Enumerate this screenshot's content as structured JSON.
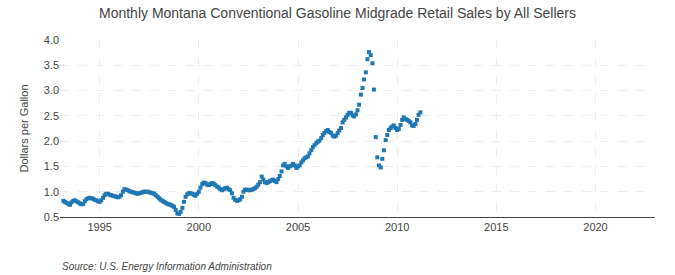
{
  "chart_data": {
    "type": "scatter",
    "title": "Monthly Montana Conventional Gasoline Midgrade Retail Sales by All Sellers",
    "ylabel": "Dollars per Gallon",
    "annotations": [
      "Source: U.S. Energy Information Administration"
    ],
    "marker": "square",
    "grid": true,
    "xlim": [
      1993.0,
      2023.0
    ],
    "ylim": [
      0.5,
      4.0
    ],
    "xticks": [
      1995,
      2000,
      2005,
      2010,
      2015,
      2020
    ],
    "yticks": [
      0.5,
      {
        "value": 1.0,
        "label": "1.0"
      },
      1.5,
      {
        "value": 2.0,
        "label": "2.0"
      },
      2.5,
      {
        "value": 3.0,
        "label": "3.0"
      },
      3.5,
      {
        "value": 4.0,
        "label": "4.0"
      }
    ],
    "x": [
      1993.17,
      1993.25,
      1993.33,
      1993.42,
      1993.5,
      1993.58,
      1993.67,
      1993.75,
      1993.83,
      1993.92,
      1994.0,
      1994.08,
      1994.17,
      1994.25,
      1994.33,
      1994.42,
      1994.5,
      1994.58,
      1994.67,
      1994.75,
      1994.83,
      1994.92,
      1995.0,
      1995.08,
      1995.17,
      1995.25,
      1995.33,
      1995.42,
      1995.5,
      1995.58,
      1995.67,
      1995.75,
      1995.83,
      1995.92,
      1996.0,
      1996.08,
      1996.17,
      1996.25,
      1996.33,
      1996.42,
      1996.5,
      1996.58,
      1996.67,
      1996.75,
      1996.83,
      1996.92,
      1997.0,
      1997.08,
      1997.17,
      1997.25,
      1997.33,
      1997.42,
      1997.5,
      1997.58,
      1997.67,
      1997.75,
      1997.83,
      1997.92,
      1998.0,
      1998.08,
      1998.17,
      1998.25,
      1998.33,
      1998.42,
      1998.5,
      1998.58,
      1998.67,
      1998.75,
      1998.83,
      1998.92,
      1999.0,
      1999.08,
      1999.17,
      1999.25,
      1999.33,
      1999.42,
      1999.5,
      1999.58,
      1999.67,
      1999.75,
      1999.83,
      1999.92,
      2000.0,
      2000.08,
      2000.17,
      2000.25,
      2000.33,
      2000.42,
      2000.5,
      2000.58,
      2000.67,
      2000.75,
      2000.83,
      2000.92,
      2001.0,
      2001.08,
      2001.17,
      2001.25,
      2001.33,
      2001.42,
      2001.5,
      2001.58,
      2001.67,
      2001.75,
      2001.83,
      2001.92,
      2002.0,
      2002.08,
      2002.17,
      2002.25,
      2002.33,
      2002.42,
      2002.5,
      2002.58,
      2002.67,
      2002.75,
      2002.83,
      2002.92,
      2003.0,
      2003.08,
      2003.17,
      2003.25,
      2003.33,
      2003.42,
      2003.5,
      2003.58,
      2003.67,
      2003.75,
      2003.83,
      2003.92,
      2004.0,
      2004.08,
      2004.17,
      2004.25,
      2004.33,
      2004.42,
      2004.5,
      2004.58,
      2004.67,
      2004.75,
      2004.83,
      2004.92,
      2005.0,
      2005.08,
      2005.17,
      2005.25,
      2005.33,
      2005.42,
      2005.5,
      2005.58,
      2005.67,
      2005.75,
      2005.83,
      2005.92,
      2006.0,
      2006.08,
      2006.17,
      2006.25,
      2006.33,
      2006.42,
      2006.5,
      2006.58,
      2006.67,
      2006.75,
      2006.83,
      2006.92,
      2007.0,
      2007.08,
      2007.17,
      2007.25,
      2007.33,
      2007.42,
      2007.5,
      2007.58,
      2007.67,
      2007.75,
      2007.83,
      2007.92,
      2008.0,
      2008.08,
      2008.17,
      2008.25,
      2008.33,
      2008.42,
      2008.5,
      2008.58,
      2008.67,
      2008.75,
      2008.83,
      2008.92,
      2009.0,
      2009.08,
      2009.17,
      2009.25,
      2009.33,
      2009.42,
      2009.5,
      2009.58,
      2009.67,
      2009.75,
      2009.83,
      2009.92,
      2010.0,
      2010.08,
      2010.17,
      2010.25,
      2010.33,
      2010.42,
      2010.5,
      2010.58,
      2010.67,
      2010.75,
      2010.83,
      2010.92,
      2011.0,
      2011.08,
      2011.17
    ],
    "values": [
      0.82,
      0.8,
      0.78,
      0.76,
      0.74,
      0.79,
      0.82,
      0.83,
      0.81,
      0.79,
      0.77,
      0.75,
      0.76,
      0.81,
      0.85,
      0.87,
      0.88,
      0.87,
      0.86,
      0.84,
      0.83,
      0.81,
      0.8,
      0.83,
      0.88,
      0.93,
      0.96,
      0.96,
      0.94,
      0.93,
      0.92,
      0.91,
      0.9,
      0.89,
      0.9,
      0.93,
      1.0,
      1.05,
      1.04,
      1.03,
      1.01,
      1.0,
      0.99,
      0.98,
      0.97,
      0.96,
      0.97,
      0.98,
      0.99,
      1.0,
      1.0,
      1.0,
      0.99,
      0.98,
      0.97,
      0.96,
      0.93,
      0.9,
      0.87,
      0.84,
      0.82,
      0.8,
      0.78,
      0.76,
      0.75,
      0.74,
      0.72,
      0.7,
      0.64,
      0.57,
      0.56,
      0.6,
      0.68,
      0.8,
      0.9,
      0.95,
      0.97,
      0.97,
      0.96,
      0.94,
      0.92,
      0.96,
      1.0,
      1.08,
      1.15,
      1.18,
      1.17,
      1.14,
      1.13,
      1.15,
      1.17,
      1.16,
      1.13,
      1.1,
      1.08,
      1.05,
      1.03,
      1.05,
      1.07,
      1.08,
      1.05,
      1.03,
      0.97,
      0.88,
      0.84,
      0.82,
      0.83,
      0.85,
      0.9,
      1.0,
      1.04,
      1.04,
      1.03,
      1.03,
      1.04,
      1.05,
      1.07,
      1.1,
      1.14,
      1.19,
      1.3,
      1.24,
      1.19,
      1.17,
      1.19,
      1.21,
      1.23,
      1.24,
      1.21,
      1.19,
      1.25,
      1.31,
      1.4,
      1.52,
      1.55,
      1.5,
      1.47,
      1.5,
      1.52,
      1.55,
      1.52,
      1.47,
      1.5,
      1.52,
      1.58,
      1.62,
      1.66,
      1.68,
      1.7,
      1.76,
      1.82,
      1.88,
      1.92,
      1.96,
      1.99,
      2.01,
      2.06,
      2.12,
      2.16,
      2.2,
      2.22,
      2.18,
      2.16,
      2.11,
      2.09,
      2.11,
      2.16,
      2.21,
      2.26,
      2.37,
      2.42,
      2.47,
      2.52,
      2.56,
      2.56,
      2.51,
      2.49,
      2.53,
      2.61,
      2.72,
      2.92,
      3.05,
      3.22,
      3.36,
      3.62,
      3.76,
      3.7,
      3.54,
      3.02,
      2.08,
      1.68,
      1.52,
      1.48,
      1.65,
      1.82,
      2.02,
      2.12,
      2.22,
      2.26,
      2.29,
      2.31,
      2.26,
      2.22,
      2.24,
      2.32,
      2.42,
      2.47,
      2.44,
      2.42,
      2.4,
      2.37,
      2.31,
      2.3,
      2.34,
      2.42,
      2.52,
      2.57
    ]
  }
}
